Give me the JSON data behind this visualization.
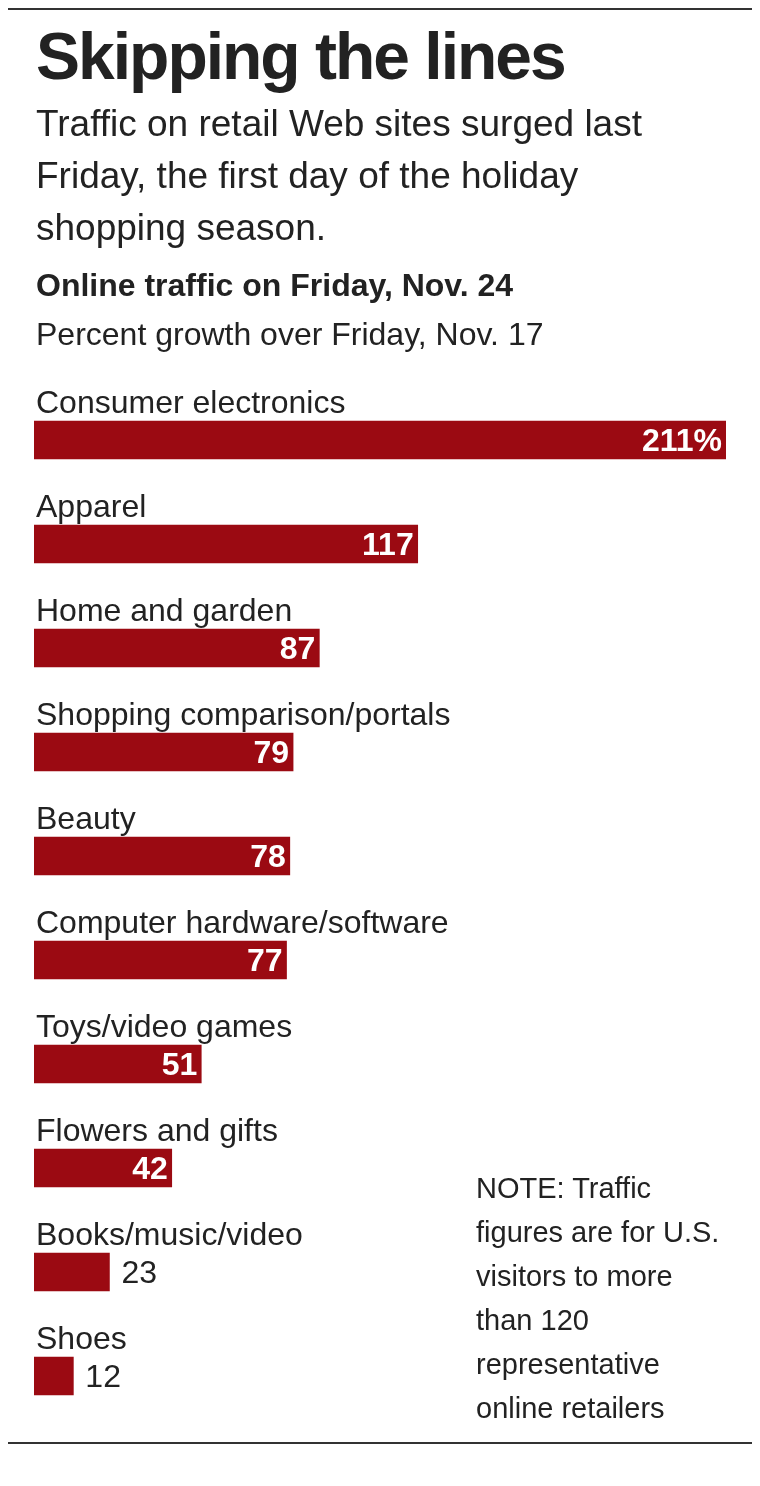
{
  "chart_data": {
    "type": "bar",
    "orientation": "horizontal",
    "title": "Skipping the lines",
    "subtitle": "Traffic on retail Web sites surged last Friday, the first day of the holiday shopping season.",
    "categories": [
      "Consumer electronics",
      "Apparel",
      "Home and garden",
      "Shopping comparison/portals",
      "Beauty",
      "Computer hardware/software",
      "Toys/video games",
      "Flowers and gifts",
      "Books/music/video",
      "Shoes"
    ],
    "values": [
      211,
      117,
      87,
      79,
      78,
      77,
      51,
      42,
      23,
      12
    ],
    "value_labels": [
      "211%",
      "117",
      "87",
      "79",
      "78",
      "77",
      "51",
      "42",
      "23",
      "12"
    ],
    "annotations": [
      "Online traffic on Friday, Nov. 24",
      "Percent growth over Friday, Nov. 17",
      "NOTE: Traffic figures are for U.S. visitors to more than 120 representative online retailers"
    ],
    "color": "#9b0a12"
  }
}
